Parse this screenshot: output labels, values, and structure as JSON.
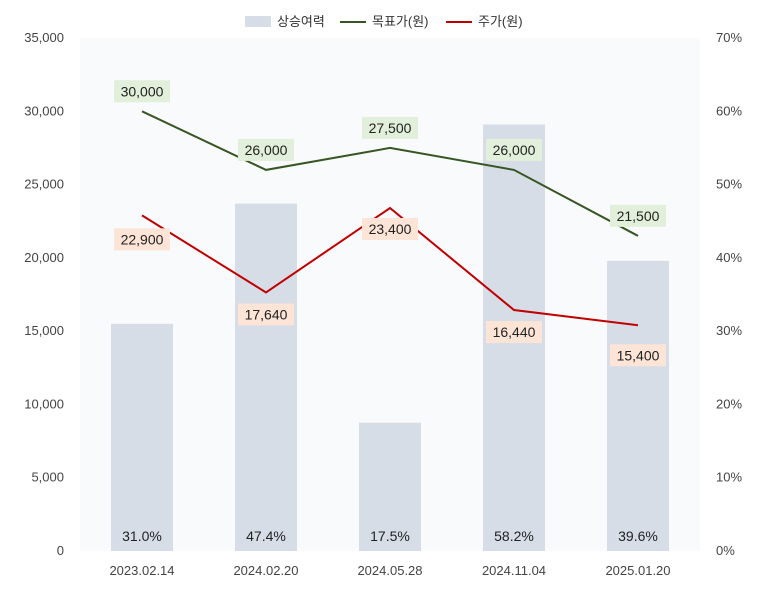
{
  "chart_data": {
    "type": "bar",
    "categories": [
      "2023.02.14",
      "2024.02.20",
      "2024.05.28",
      "2024.11.04",
      "2025.01.20"
    ],
    "series": [
      {
        "name": "상승여력",
        "type": "bar",
        "axis": "right",
        "values": [
          31.0,
          47.4,
          17.5,
          58.2,
          39.6
        ],
        "labels": [
          "31.0%",
          "47.4%",
          "17.5%",
          "58.2%",
          "39.6%"
        ],
        "color": "#d6dde7"
      },
      {
        "name": "목표가(원)",
        "type": "line",
        "axis": "left",
        "values": [
          30000,
          26000,
          27500,
          26000,
          21500
        ],
        "labels": [
          "30,000",
          "26,000",
          "27,500",
          "26,000",
          "21,500"
        ],
        "color": "#375623",
        "label_bg": "#e2efda"
      },
      {
        "name": "주가(원)",
        "type": "line",
        "axis": "left",
        "values": [
          22900,
          17640,
          23400,
          16440,
          15400
        ],
        "labels": [
          "22,900",
          "17,640",
          "23,400",
          "16,440",
          "15,400"
        ],
        "color": "#c00000",
        "label_bg": "#fce4d6"
      }
    ],
    "ylim_left": [
      0,
      35000
    ],
    "yticks_left": [
      "0",
      "5,000",
      "10,000",
      "15,000",
      "20,000",
      "25,000",
      "30,000",
      "35,000"
    ],
    "ylim_right": [
      0,
      70
    ],
    "yticks_right": [
      "0%",
      "10%",
      "20%",
      "30%",
      "40%",
      "50%",
      "60%",
      "70%"
    ],
    "legend": "top",
    "grid": false,
    "plot_background": "#f9fafb"
  }
}
